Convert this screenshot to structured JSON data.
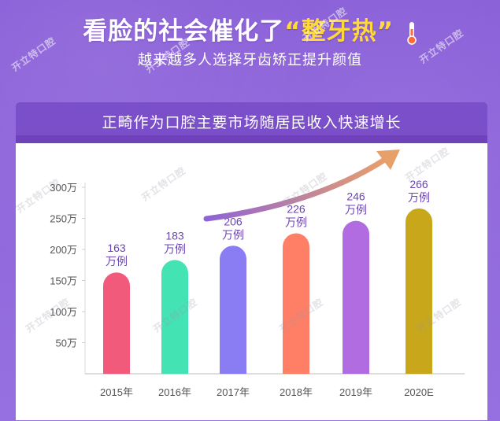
{
  "headline": {
    "part1": "看脸的社会催化了",
    "highlight": "“整牙热”",
    "thermometer_icon": "thermometer-icon"
  },
  "subheadline": "越来越多人选择牙齿矫正提升颜值",
  "watermark_text": "开立特口腔",
  "chart_data": {
    "type": "bar",
    "title": "正畸作为口腔主要市场随居民收入快速增长",
    "categories": [
      "2015年",
      "2016年",
      "2017年",
      "2018年",
      "2019年",
      "2020E"
    ],
    "values": [
      163,
      183,
      206,
      226,
      246,
      266
    ],
    "value_labels": [
      [
        "163",
        "万例"
      ],
      [
        "183",
        "万例"
      ],
      [
        "206",
        "万例"
      ],
      [
        "226",
        "万例"
      ],
      [
        "246",
        "万例"
      ],
      [
        "266",
        "万例"
      ]
    ],
    "y_ticks": [
      50,
      100,
      150,
      200,
      250,
      300
    ],
    "y_tick_labels": [
      "50万",
      "100万",
      "150万",
      "200万",
      "250万",
      "300万"
    ],
    "ylim": [
      0,
      300
    ],
    "colors": [
      "#f25a7b",
      "#44e3b4",
      "#8a7cf2",
      "#ff7f66",
      "#b06ce0",
      "#c9a71a"
    ],
    "trend_arrow_color": "#e8a06a",
    "xlabel": "",
    "ylabel": ""
  }
}
